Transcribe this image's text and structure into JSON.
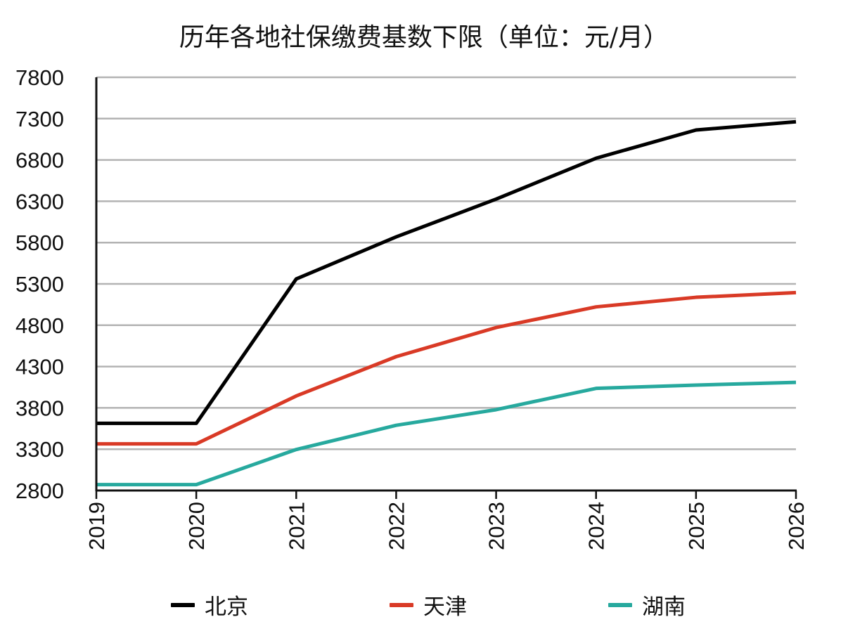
{
  "title": "历年各地社保缴费基数下限（单位：元/月）",
  "chart_data": {
    "type": "line",
    "title": "历年各地社保缴费基数下限（单位：元/月）",
    "x": [
      "2019",
      "2020",
      "2021",
      "2022",
      "2023",
      "2024",
      "2025",
      "2026"
    ],
    "y_ticks": [
      "2800",
      "3300",
      "3800",
      "4300",
      "4800",
      "5300",
      "5800",
      "6300",
      "6800",
      "7300",
      "7800"
    ],
    "ylim": [
      2800,
      7800
    ],
    "grid": true,
    "legend_position": "bottom",
    "series": [
      {
        "name": "北京",
        "color": "#000000",
        "values": [
          3613,
          3613,
          5360,
          5869,
          6326,
          6821,
          7162,
          7262
        ]
      },
      {
        "name": "天津",
        "color": "#d93a26",
        "values": [
          3364,
          3364,
          3944,
          4420,
          4772,
          5022,
          5138,
          5195
        ]
      },
      {
        "name": "湖南",
        "color": "#27a99e",
        "values": [
          2871,
          2871,
          3296,
          3589,
          3778,
          4036,
          4076,
          4108
        ]
      }
    ]
  }
}
